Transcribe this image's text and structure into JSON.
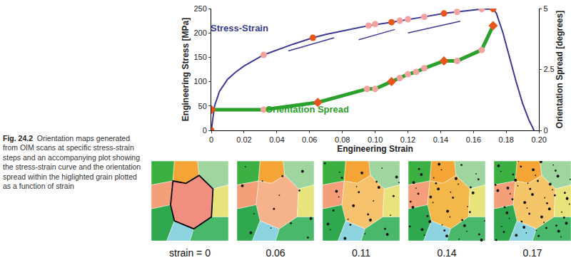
{
  "chart_data": {
    "type": "line",
    "x_label": "Engineering Strain",
    "y_label": "Engineering Stress [MPa]",
    "y2_label": "Orientation Spread [degrees]",
    "xlim": [
      0,
      0.2
    ],
    "xticks": [
      0,
      0.02,
      0.04,
      0.06,
      0.08,
      {
        "value": 0.1,
        "label": "0.10"
      },
      0.12,
      0.14,
      0.16,
      0.18,
      {
        "value": 0.2,
        "label": "0.20"
      }
    ],
    "ylim": [
      0,
      250
    ],
    "yticks": [
      0,
      50,
      100,
      150,
      200,
      250
    ],
    "y2lim": [
      0,
      5
    ],
    "y2ticks": [
      0,
      2.5,
      5
    ],
    "grid": false,
    "series": [
      {
        "name": "Stress-Strain",
        "type": "line",
        "color": "#3d3a96",
        "x": [
          0,
          0.002,
          0.005,
          0.01,
          0.015,
          0.02,
          0.032,
          0.04,
          0.05,
          0.062,
          0.07,
          0.08,
          0.096,
          0.11,
          0.12,
          0.13,
          0.142,
          0.15,
          0.16,
          0.165,
          0.172,
          0.174,
          0.178,
          0.182,
          0.186,
          0.19,
          0.194,
          0.197
        ],
        "values": [
          0,
          50,
          80,
          105,
          120,
          132,
          155,
          165,
          177,
          190,
          197,
          204,
          215,
          222,
          228,
          233,
          240,
          243,
          247,
          249,
          249,
          240,
          200,
          150,
          100,
          55,
          20,
          0
        ]
      },
      {
        "type": "line",
        "color": "#3d3a96",
        "x": [
          0.047,
          0.075
        ],
        "values": [
          163,
          190
        ]
      },
      {
        "type": "line",
        "color": "#3d3a96",
        "x": [
          0.09,
          0.112
        ],
        "values": [
          186,
          207
        ]
      },
      {
        "type": "line",
        "color": "#3d3a96",
        "x": [
          0.12,
          0.152
        ],
        "values": [
          200,
          224
        ]
      },
      {
        "type": "scatter",
        "marker": "circle",
        "color": "#e8541c",
        "x": [
          0,
          0.062,
          0.11,
          0.142,
          0.172
        ],
        "values": [
          0,
          190,
          222,
          240,
          249
        ]
      },
      {
        "type": "scatter",
        "marker": "circle",
        "color": "#f2a3a0",
        "x": [
          0.032,
          0.096,
          0.1,
          0.115,
          0.12,
          0.13,
          0.15,
          0.165
        ],
        "values": [
          155,
          215,
          218,
          225,
          228,
          233,
          243,
          249
        ]
      },
      {
        "name": "Orientation Spread",
        "type": "line",
        "axis": "y2",
        "color": "#2ca02c",
        "x": [
          0,
          0.032,
          0.065,
          0.095,
          0.1,
          0.11,
          0.115,
          0.12,
          0.125,
          0.13,
          0.142,
          0.15,
          0.165,
          0.172
        ],
        "values": [
          0.85,
          0.85,
          1.15,
          1.7,
          1.7,
          2.0,
          2.15,
          2.3,
          2.4,
          2.55,
          2.85,
          2.85,
          3.3,
          4.3
        ]
      },
      {
        "type": "scatter",
        "axis": "y2",
        "marker": "diamond",
        "color": "#e8541c",
        "x": [
          0,
          0.065,
          0.11,
          0.142,
          0.172
        ],
        "values": [
          0.85,
          1.15,
          2.0,
          2.85,
          4.3
        ]
      },
      {
        "type": "scatter",
        "axis": "y2",
        "marker": "circle",
        "color": "#f2a3a0",
        "x": [
          0.032,
          0.095,
          0.1,
          0.115,
          0.12,
          0.125,
          0.13,
          0.15,
          0.165
        ],
        "values": [
          0.85,
          1.7,
          1.7,
          2.15,
          2.3,
          2.4,
          2.55,
          2.85,
          3.3
        ]
      }
    ]
  },
  "caption": {
    "figure_label": "Fig. 24.2",
    "text": "Orientation maps generated from OIM scans at specific stress-strain steps and an accompanying plot showing the stress-strain curve and the orientation spread within the higlighted grain plotted as a function of strain"
  },
  "orientation_maps": {
    "labels": [
      "strain = 0",
      "0.06",
      "0.11",
      "0.14",
      "0.17"
    ]
  }
}
